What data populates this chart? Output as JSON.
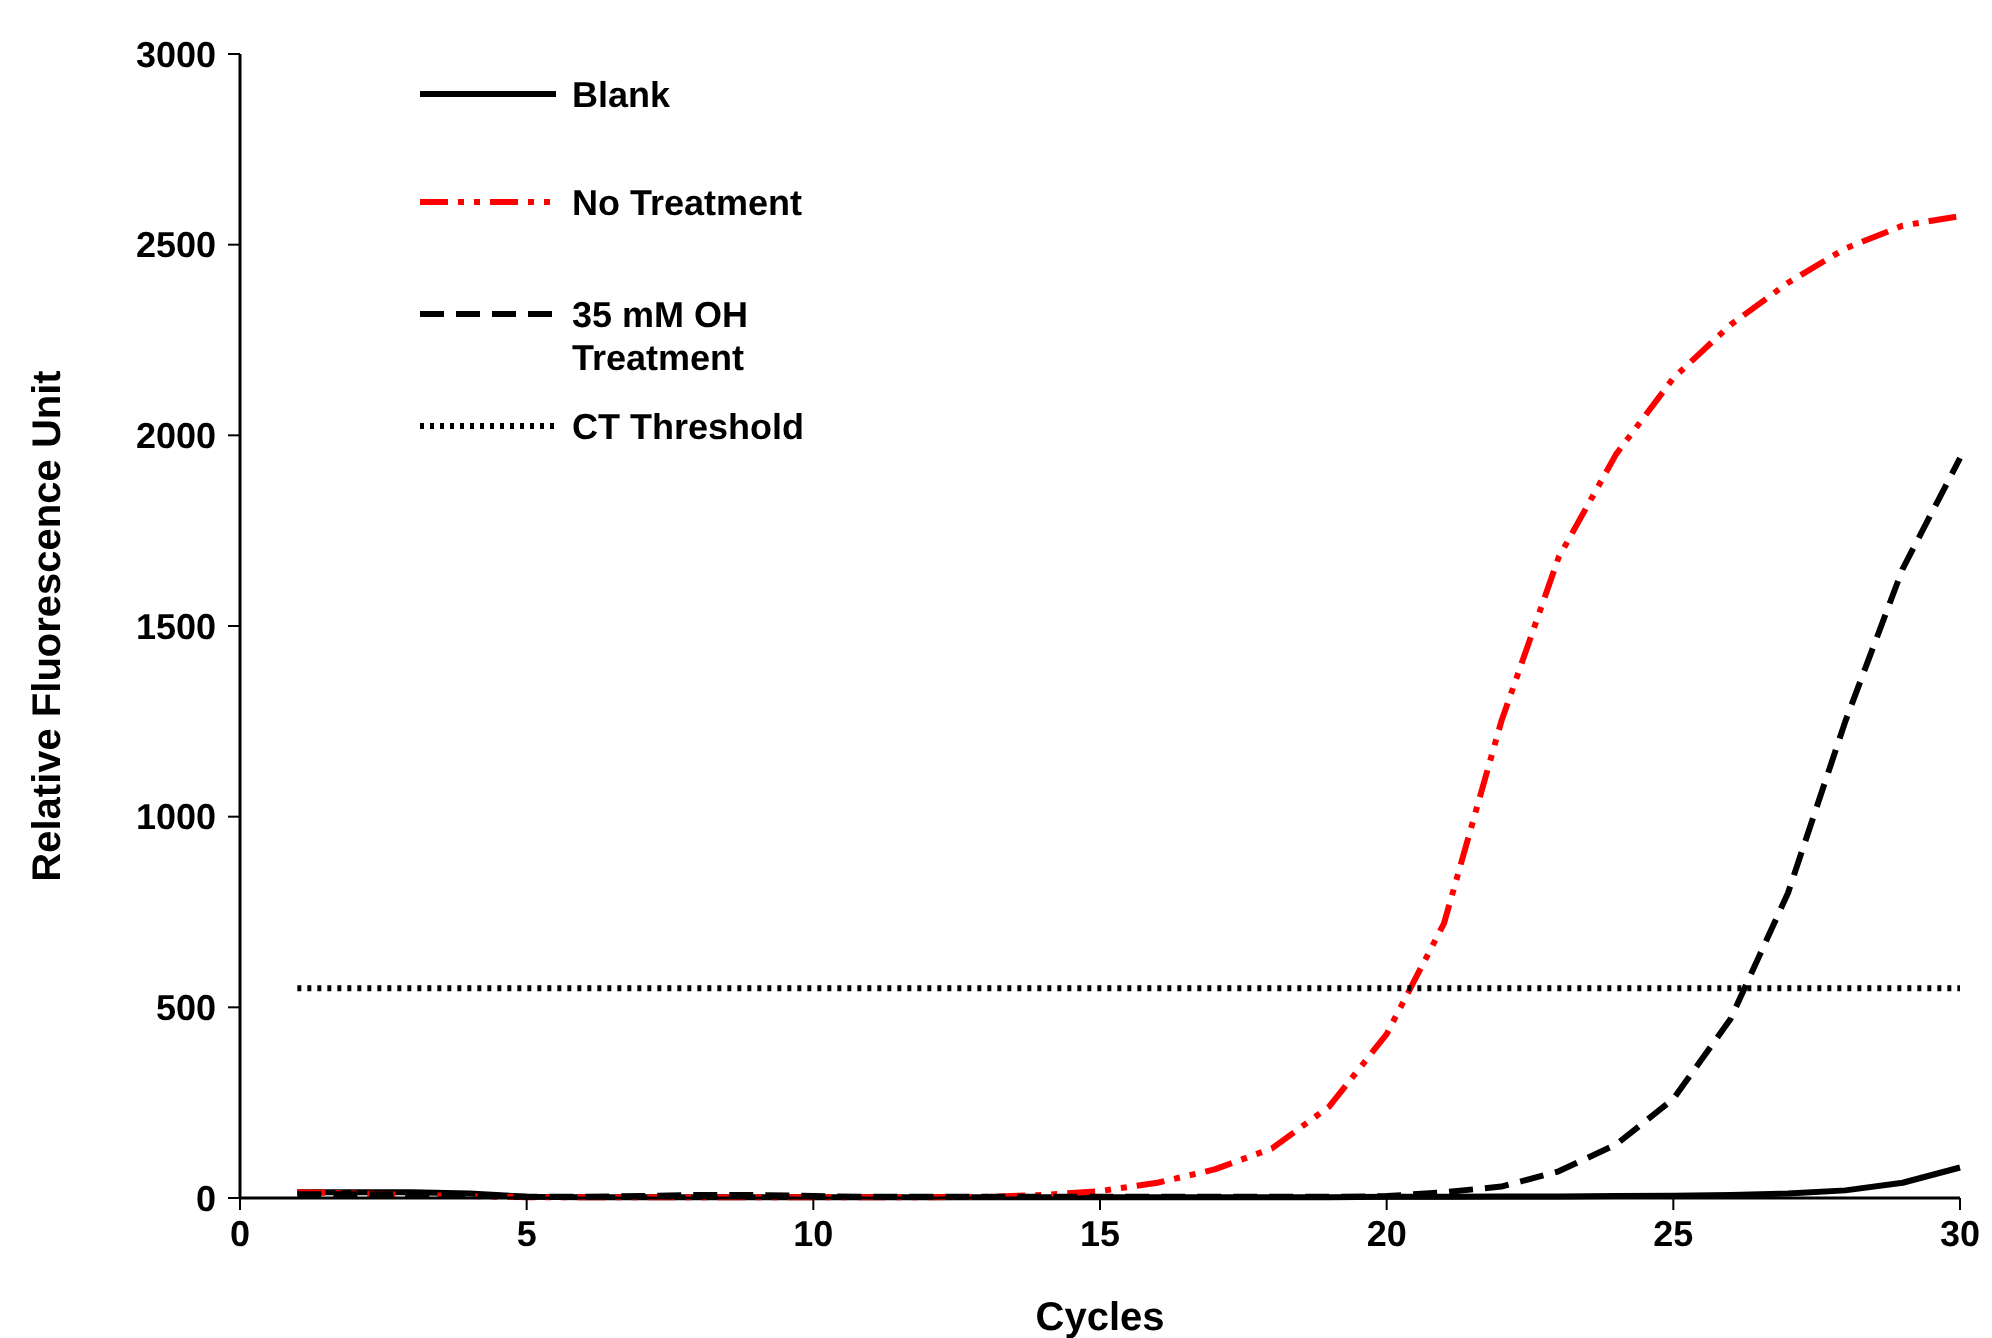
{
  "chart_data": {
    "type": "line",
    "xlabel": "Cycles",
    "ylabel": "Relative Fluorescence Unit",
    "xlim": [
      0,
      30
    ],
    "xticks": [
      0,
      5,
      10,
      15,
      20,
      25,
      30
    ],
    "ylim": [
      0,
      3000
    ],
    "yticks": [
      0,
      500,
      1000,
      1500,
      2000,
      2500,
      3000
    ],
    "grid": false,
    "legend": "top left",
    "marker": "none",
    "x": [
      1,
      2,
      3,
      4,
      5,
      6,
      7,
      8,
      9,
      10,
      11,
      12,
      13,
      14,
      15,
      16,
      17,
      18,
      19,
      20,
      21,
      22,
      23,
      24,
      25,
      26,
      27,
      28,
      29,
      30
    ],
    "series": [
      {
        "name": "Blank",
        "color": "#000000",
        "line_style": "solid",
        "values": [
          15,
          15,
          15,
          12,
          3,
          2,
          2,
          2,
          2,
          2,
          2,
          2,
          2,
          2,
          2,
          2,
          2,
          2,
          2,
          3,
          3,
          4,
          4,
          5,
          6,
          8,
          12,
          20,
          40,
          80
        ]
      },
      {
        "name": "No Treatment",
        "color": "#ff0000",
        "line_style": "dashdotdot",
        "values": [
          15,
          12,
          8,
          5,
          2,
          2,
          2,
          2,
          2,
          2,
          2,
          2,
          3,
          8,
          18,
          40,
          75,
          130,
          240,
          430,
          720,
          1250,
          1680,
          1950,
          2150,
          2290,
          2400,
          2490,
          2550,
          2575
        ]
      },
      {
        "name": "35 mM OH Treatment",
        "color": "#000000",
        "line_style": "dashed",
        "values": [
          10,
          10,
          10,
          8,
          3,
          3,
          5,
          8,
          8,
          5,
          3,
          3,
          3,
          3,
          3,
          3,
          3,
          3,
          3,
          5,
          15,
          30,
          70,
          140,
          260,
          470,
          800,
          1250,
          1650,
          1940
        ]
      },
      {
        "name": "CT Threshold",
        "color": "#000000",
        "line_style": "dotted",
        "values": [
          550,
          550,
          550,
          550,
          550,
          550,
          550,
          550,
          550,
          550,
          550,
          550,
          550,
          550,
          550,
          550,
          550,
          550,
          550,
          550,
          550,
          550,
          550,
          550,
          550,
          550,
          550,
          550,
          550,
          550
        ]
      }
    ]
  }
}
